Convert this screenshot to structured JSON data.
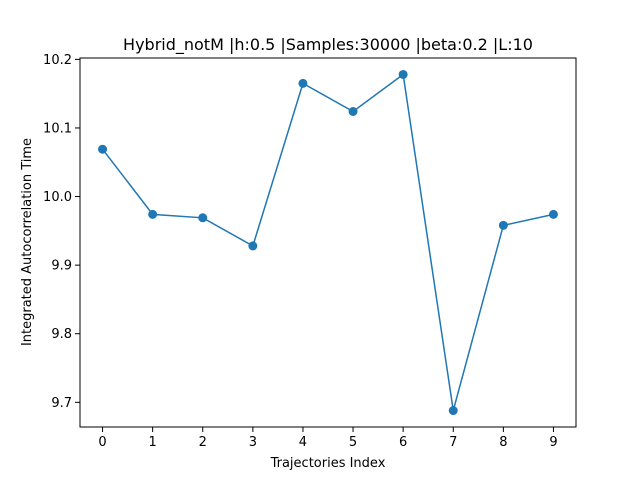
{
  "chart_data": {
    "type": "line",
    "title": "Hybrid_notM |h:0.5 |Samples:30000 |beta:0.2 |L:10",
    "xlabel": "Trajectories Index",
    "ylabel": "Integrated Autocorrelation Time",
    "x": [
      0,
      1,
      2,
      3,
      4,
      5,
      6,
      7,
      8,
      9
    ],
    "series": [
      {
        "values": [
          10.069,
          9.974,
          9.969,
          9.928,
          10.165,
          10.124,
          10.178,
          9.688,
          9.958,
          9.974
        ]
      }
    ],
    "xlim": [
      -0.45,
      9.45
    ],
    "ylim": [
      9.664,
      10.202
    ],
    "xticks": [
      "0",
      "1",
      "2",
      "3",
      "4",
      "5",
      "6",
      "7",
      "8",
      "9"
    ],
    "yticks": [
      "9.7",
      "9.8",
      "9.9",
      "10.0",
      "10.1",
      "10.2"
    ],
    "ytick_values": [
      9.7,
      9.8,
      9.9,
      10.0,
      10.1,
      10.2
    ],
    "grid": false,
    "line_color": "#1f77b4",
    "marker": "circle"
  }
}
